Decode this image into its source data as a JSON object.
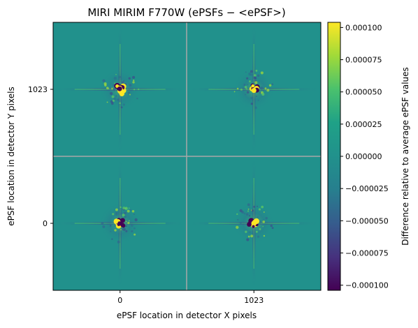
{
  "chart_data": {
    "type": "heatmap",
    "title": "MIRI MIRIM F770W (ePSFs − <ePSF>)",
    "xlabel": "ePSF location in detector X pixels",
    "ylabel": "ePSF location in detector Y pixels",
    "x_ticks": [
      "0",
      "1023"
    ],
    "y_ticks": [
      "0",
      "1023"
    ],
    "grid": {
      "rows": 2,
      "cols": 2
    },
    "cells": [
      {
        "x": "0",
        "y": "1023"
      },
      {
        "x": "1023",
        "y": "1023"
      },
      {
        "x": "0",
        "y": "0"
      },
      {
        "x": "1023",
        "y": "0"
      }
    ],
    "colorbar": {
      "label": "Difference relative to average ePSF values",
      "min": -0.0001,
      "max": 0.0001,
      "ticks": [
        {
          "value": 0.0001,
          "label": "0.000100"
        },
        {
          "value": 7.5e-05,
          "label": "0.000075"
        },
        {
          "value": 5e-05,
          "label": "0.000050"
        },
        {
          "value": 2.5e-05,
          "label": "0.000025"
        },
        {
          "value": 0.0,
          "label": "0.000000"
        },
        {
          "value": -2.5e-05,
          "label": "−0.000025"
        },
        {
          "value": -5e-05,
          "label": "−0.000050"
        },
        {
          "value": -7.5e-05,
          "label": "−0.000075"
        },
        {
          "value": -0.0001,
          "label": "−0.000100"
        }
      ],
      "colormap": "viridis",
      "colors": [
        "#440154",
        "#3b528b",
        "#21918c",
        "#5ec962",
        "#fde725"
      ]
    },
    "background_color": "#21918c",
    "divider_color": "#a8a8a8"
  }
}
